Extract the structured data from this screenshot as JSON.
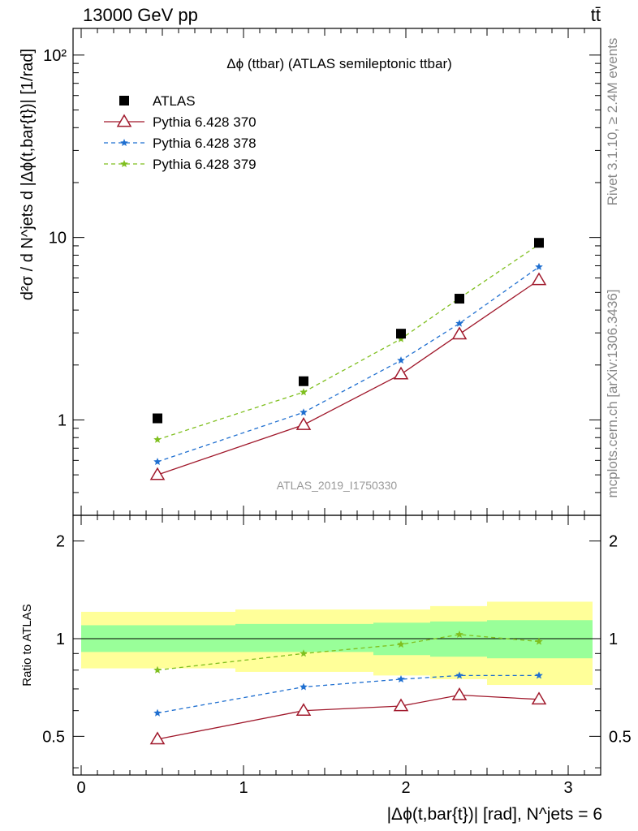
{
  "header": {
    "left": "13000 GeV pp",
    "right": "tt̄"
  },
  "side_text": {
    "rivet": "Rivet 3.1.10, ≥ 2.4M events",
    "mcplots": "mcplots.cern.ch [arXiv:1306.3436]"
  },
  "colors": {
    "atlas": "#000000",
    "p370": "#a0182b",
    "p378": "#1f6fd0",
    "p379": "#7fbf1f",
    "band_inner": "#99ff99",
    "band_outer": "#ffff99"
  },
  "chart_data": [
    {
      "type": "line",
      "title": "Δϕ (ttbar) (ATLAS semileptonic ttbar)",
      "watermark": "ATLAS_2019_I1750330",
      "ylabel": "d²σ / d N^jets d |Δϕ(t,bar{t})| [1/rad]",
      "yscale": "log",
      "ylim": [
        0.3,
        140
      ],
      "xlim": [
        -0.05,
        3.2
      ],
      "ytick_labels": [
        "1",
        "10",
        "10²"
      ],
      "x": [
        0.47,
        1.37,
        1.97,
        2.33,
        2.82
      ],
      "legend_placement": "top-left",
      "series": [
        {
          "name": "ATLAS",
          "marker": "square",
          "values": [
            1.02,
            1.63,
            2.97,
            4.62,
            9.35
          ]
        },
        {
          "name": "Pythia 6.428 370",
          "marker": "triangle",
          "values": [
            0.5,
            0.94,
            1.78,
            2.95,
            5.85
          ]
        },
        {
          "name": "Pythia 6.428 378",
          "marker": "star",
          "values": [
            0.59,
            1.1,
            2.12,
            3.38,
            6.9
          ]
        },
        {
          "name": "Pythia 6.428 379",
          "marker": "star",
          "values": [
            0.78,
            1.42,
            2.78,
            4.65,
            9.15
          ]
        }
      ]
    },
    {
      "type": "line",
      "ylabel": "Ratio to ATLAS",
      "xlabel": "|Δϕ(t,bar{t})| [rad], N^jets = 6",
      "xlim": [
        -0.05,
        3.2
      ],
      "ylim": [
        0.38,
        2.4
      ],
      "xtick_labels": [
        "0",
        "1",
        "2",
        "3"
      ],
      "ytick_labels": [
        "0.5",
        "1",
        "2"
      ],
      "x": [
        0.47,
        1.37,
        1.97,
        2.33,
        2.82
      ],
      "bands": [
        {
          "x_edges": [
            0.0,
            0.95,
            1.8,
            2.15,
            2.5,
            3.15
          ],
          "inner_low": [
            0.91,
            0.91,
            0.89,
            0.88,
            0.87
          ],
          "inner_high": [
            1.1,
            1.11,
            1.12,
            1.13,
            1.14
          ],
          "outer_low": [
            0.81,
            0.79,
            0.77,
            0.75,
            0.72
          ],
          "outer_high": [
            1.21,
            1.23,
            1.23,
            1.26,
            1.3
          ]
        }
      ],
      "series": [
        {
          "name": "Pythia 6.428 370",
          "values": [
            0.49,
            0.6,
            0.62,
            0.67,
            0.65
          ]
        },
        {
          "name": "Pythia 6.428 378",
          "values": [
            0.59,
            0.71,
            0.75,
            0.77,
            0.77
          ]
        },
        {
          "name": "Pythia 6.428 379",
          "values": [
            0.8,
            0.9,
            0.96,
            1.03,
            0.98
          ]
        }
      ]
    }
  ]
}
